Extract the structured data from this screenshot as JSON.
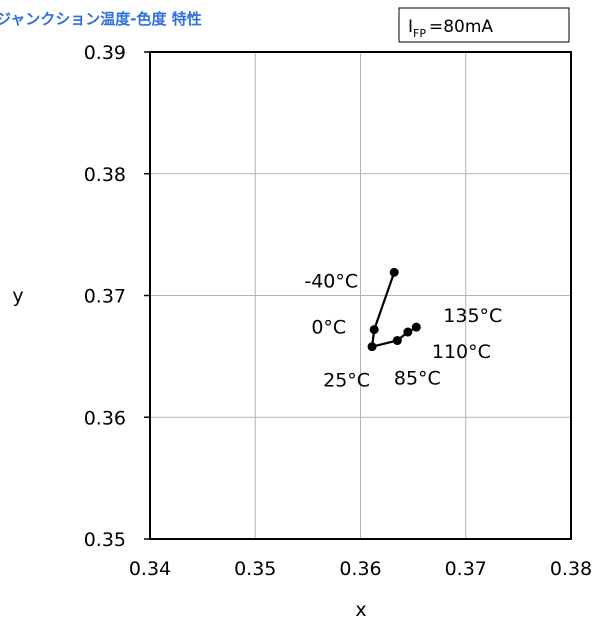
{
  "chart_data": {
    "type": "line",
    "title": "ジャンクション温度-色度 特性",
    "condition": {
      "symbol": "I",
      "subscript": "FP",
      "text": "=80mA"
    },
    "xlabel": "x",
    "ylabel": "y",
    "xlim": [
      0.34,
      0.38
    ],
    "ylim": [
      0.35,
      0.39
    ],
    "xticks": [
      "0.34",
      "0.35",
      "0.36",
      "0.37",
      "0.38"
    ],
    "yticks": [
      "0.39",
      "0.38",
      "0.37",
      "0.36",
      "0.35"
    ],
    "grid": true,
    "series": [
      {
        "points": [
          {
            "label": "-40°C",
            "x": 0.3632,
            "y": 0.3719
          },
          {
            "label": "0°C",
            "x": 0.3613,
            "y": 0.3672
          },
          {
            "label": "25°C",
            "x": 0.3611,
            "y": 0.3658
          },
          {
            "label": "85°C",
            "x": 0.3635,
            "y": 0.3663
          },
          {
            "label": "110°C",
            "x": 0.3645,
            "y": 0.367
          },
          {
            "label": "135°C",
            "x": 0.3653,
            "y": 0.3674
          }
        ]
      }
    ]
  }
}
